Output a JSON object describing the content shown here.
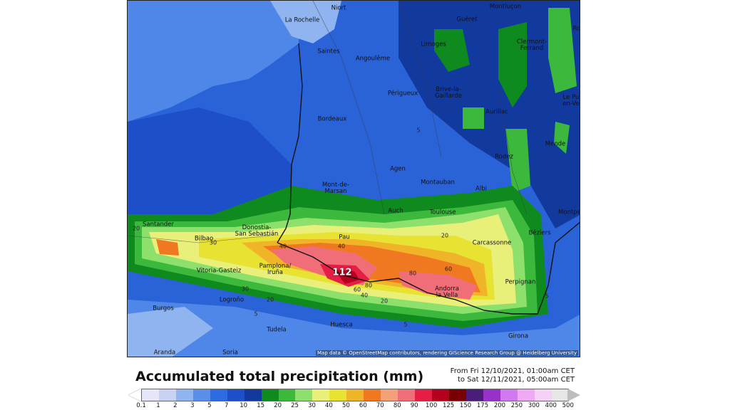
{
  "title": "Accumulated total precipitation (mm)",
  "dates": {
    "from": "From Fri 12/10/2021, 01:00am CET",
    "to": "to Sat 12/11/2021, 05:00am CET"
  },
  "attribution": "Map data © OpenStreetMap contributors, rendering GIScience Research Group @ Heidelberg University",
  "peak_value": "112",
  "legend": {
    "ticks": [
      "0.1",
      "1",
      "2",
      "3",
      "5",
      "7",
      "10",
      "15",
      "20",
      "25",
      "30",
      "40",
      "50",
      "60",
      "70",
      "80",
      "90",
      "100",
      "125",
      "150",
      "175",
      "200",
      "250",
      "300",
      "400",
      "500"
    ],
    "colors": [
      "#e6e6fa",
      "#c8d2f5",
      "#8fb4f0",
      "#5a8ee8",
      "#2f6be0",
      "#1d4fc8",
      "#123a9e",
      "#0e8a1e",
      "#3cb83c",
      "#8ee06c",
      "#e8f07a",
      "#e8e232",
      "#f0b428",
      "#f07820",
      "#f5a078",
      "#f06e78",
      "#e61e46",
      "#b4001e",
      "#780000",
      "#4a1e78",
      "#9632c8",
      "#d278f0",
      "#f0aaf5",
      "#f5d2f5",
      "#e6e6e6"
    ]
  },
  "cities": [
    {
      "name": "Niort"
    },
    {
      "name": "La Rochelle"
    },
    {
      "name": "Montluçon"
    },
    {
      "name": "Guéret"
    },
    {
      "name": "Saintes"
    },
    {
      "name": "Angoulême"
    },
    {
      "name": "Limoges"
    },
    {
      "name": "Clermont-\nFerrand"
    },
    {
      "name": "Ro"
    },
    {
      "name": "Périgueux"
    },
    {
      "name": "Brive-la-\nGaillarde"
    },
    {
      "name": "Le Pu\nen-Ve"
    },
    {
      "name": "Bordeaux"
    },
    {
      "name": "Aurillac"
    },
    {
      "name": "Mende"
    },
    {
      "name": "Rodez"
    },
    {
      "name": "Agen"
    },
    {
      "name": "Mont-de-\nMarsan"
    },
    {
      "name": "Montauban"
    },
    {
      "name": "Albi"
    },
    {
      "name": "Auch"
    },
    {
      "name": "Toulouse"
    },
    {
      "name": "Montpe"
    },
    {
      "name": "Santander"
    },
    {
      "name": "Donostia-\nSan Sebastián"
    },
    {
      "name": "Bilbao"
    },
    {
      "name": "Pau"
    },
    {
      "name": "Béziers"
    },
    {
      "name": "Carcassonne"
    },
    {
      "name": "Vitoria-Gasteiz"
    },
    {
      "name": "Pamplona/\nIruña"
    },
    {
      "name": "Perpignan"
    },
    {
      "name": "Andorra\nla Vella"
    },
    {
      "name": "Burgos"
    },
    {
      "name": "Logroño"
    },
    {
      "name": "Huesca"
    },
    {
      "name": "Tudela"
    },
    {
      "name": "Girona"
    },
    {
      "name": "Aranda"
    },
    {
      "name": "Soria"
    }
  ],
  "contour_labels": [
    "5",
    "5",
    "5",
    "20",
    "20",
    "20",
    "40",
    "40",
    "60",
    "60",
    "80",
    "80",
    "30",
    "40",
    "30",
    "20",
    "5"
  ]
}
